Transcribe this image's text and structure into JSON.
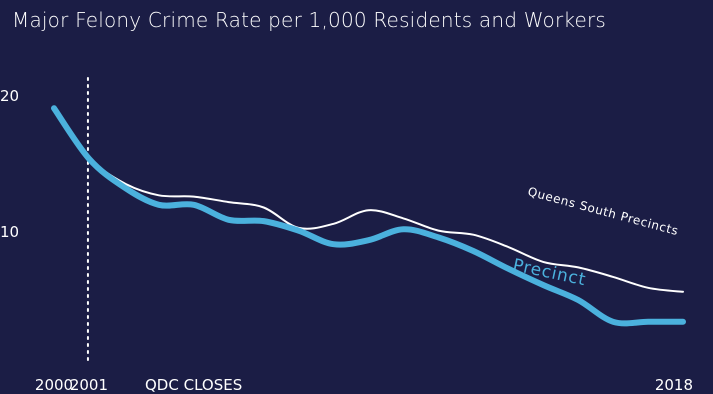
{
  "chart_data": {
    "type": "line",
    "title": "Major Felony Crime Rate per 1,000 Residents and Workers",
    "xlabel": "",
    "ylabel": "",
    "x": [
      2000,
      2001,
      2002,
      2003,
      2004,
      2005,
      2006,
      2007,
      2008,
      2009,
      2010,
      2011,
      2012,
      2013,
      2014,
      2015,
      2016,
      2017,
      2018
    ],
    "xlim": [
      2000,
      2018
    ],
    "ylim": [
      0,
      20
    ],
    "y_ticks": [
      {
        "value": 10,
        "label": "10"
      },
      {
        "value": 20,
        "label": "20"
      }
    ],
    "x_tick_labels": [
      {
        "value": 2000,
        "label": "2000"
      },
      {
        "value": 2001,
        "label": "2001"
      },
      {
        "value": 2018,
        "label": "2018"
      }
    ],
    "series": [
      {
        "name": "Queens South Precincts",
        "color": "#ffffff",
        "values": [
          19.1,
          15.5,
          13.6,
          12.7,
          12.6,
          12.2,
          11.8,
          10.3,
          10.6,
          11.6,
          11.0,
          10.1,
          9.8,
          8.9,
          7.8,
          7.4,
          6.7,
          5.9,
          5.6
        ]
      },
      {
        "name": "Precinct",
        "color": "#4bb1dd",
        "values": [
          19.1,
          15.4,
          13.3,
          12.0,
          12.0,
          10.9,
          10.8,
          10.1,
          9.1,
          9.4,
          10.2,
          9.6,
          8.6,
          7.3,
          6.1,
          5.0,
          3.4,
          3.4,
          3.4
        ]
      }
    ],
    "annotations": [
      {
        "x": 2001,
        "text": "QDC CLOSES",
        "style": "dotted-vertical-line"
      }
    ],
    "grid": false,
    "legend": "inline"
  }
}
